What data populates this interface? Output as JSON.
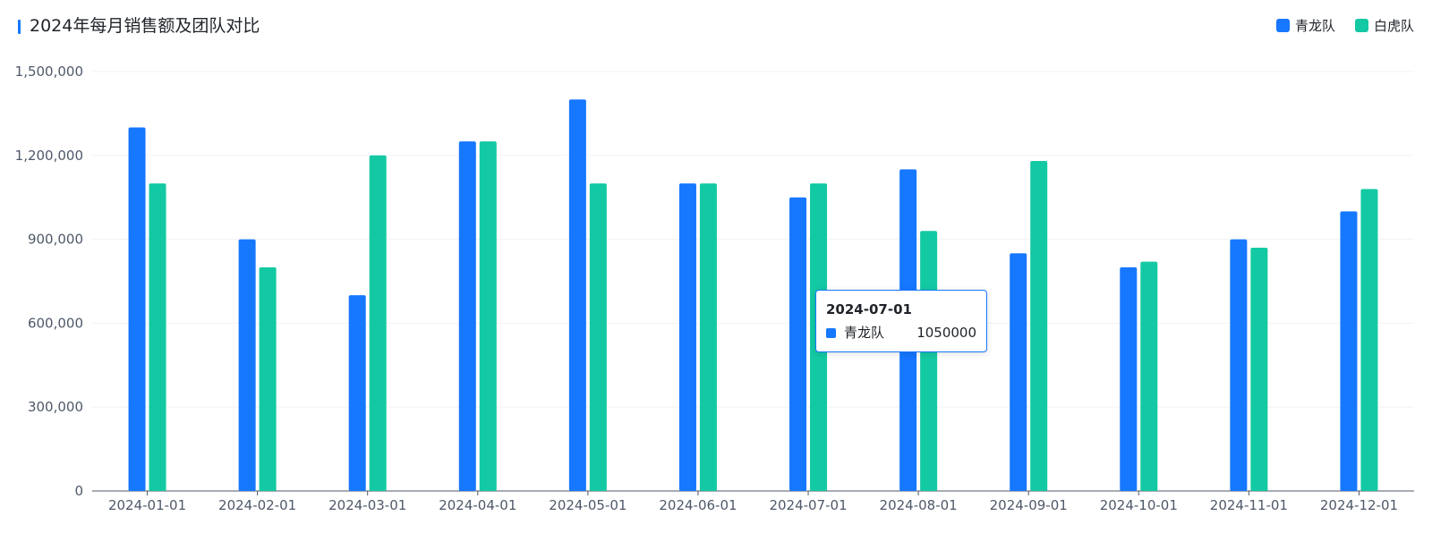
{
  "header": {
    "title": "2024年每月销售额及团队对比"
  },
  "tooltip": {
    "title": "2024-07-01",
    "series_name": "青龙队",
    "value": "1050000",
    "color": "#1677ff"
  },
  "chart_data": {
    "type": "bar",
    "title": "2024年每月销售额及团队对比",
    "categories": [
      "2024-01-01",
      "2024-02-01",
      "2024-03-01",
      "2024-04-01",
      "2024-05-01",
      "2024-06-01",
      "2024-07-01",
      "2024-08-01",
      "2024-09-01",
      "2024-10-01",
      "2024-11-01",
      "2024-12-01"
    ],
    "series": [
      {
        "name": "青龙队",
        "color": "#1677ff",
        "values": [
          1300000,
          900000,
          700000,
          1250000,
          1400000,
          1100000,
          1050000,
          1150000,
          850000,
          800000,
          900000,
          1000000
        ]
      },
      {
        "name": "白虎队",
        "color": "#13c9a3",
        "values": [
          1100000,
          800000,
          1200000,
          1250000,
          1100000,
          1100000,
          1100000,
          930000,
          1180000,
          820000,
          870000,
          1080000
        ]
      }
    ],
    "ylim": [
      0,
      1500000
    ],
    "yticks": [
      0,
      300000,
      600000,
      900000,
      1200000,
      1500000
    ],
    "ytick_labels": [
      "0",
      "300,000",
      "600,000",
      "900,000",
      "1,200,000",
      "1,500,000"
    ],
    "grid": true,
    "legend_position": "top-right"
  }
}
